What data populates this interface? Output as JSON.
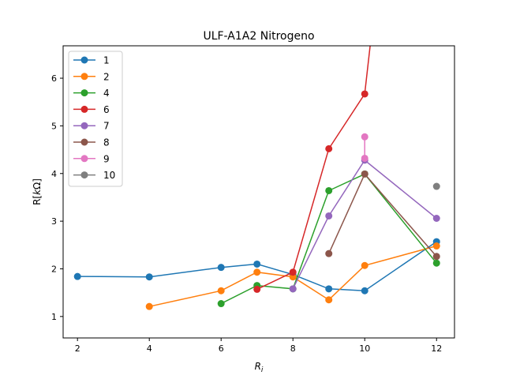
{
  "chart_data": {
    "type": "line",
    "title": "ULF-A1A2 Nitrogeno",
    "xlabel": "R",
    "xlabel_sub": "i",
    "ylabel_prefix": "R[",
    "ylabel_var": "k",
    "ylabel_suffix": "Ω]",
    "xlim": [
      1.6,
      12.5
    ],
    "ylim": [
      0.55,
      6.68
    ],
    "xticks": [
      2,
      4,
      6,
      8,
      10,
      12
    ],
    "yticks": [
      1,
      2,
      3,
      4,
      5,
      6
    ],
    "grid": false,
    "legend_position": "top-left",
    "series": [
      {
        "name": "1",
        "color": "#1f77b4",
        "x": [
          2,
          4,
          6,
          7,
          8,
          9,
          10,
          12
        ],
        "y": [
          1.84,
          1.83,
          2.03,
          2.1,
          1.88,
          1.58,
          1.54,
          2.57
        ]
      },
      {
        "name": "2",
        "color": "#ff7f0e",
        "x": [
          4,
          6,
          7,
          8,
          9,
          10,
          12
        ],
        "y": [
          1.21,
          1.54,
          1.93,
          1.83,
          1.35,
          2.07,
          2.48
        ]
      },
      {
        "name": "4",
        "color": "#2ca02c",
        "x": [
          6,
          7,
          8,
          9,
          10,
          12
        ],
        "y": [
          1.27,
          1.65,
          1.58,
          3.64,
          3.99,
          2.12
        ]
      },
      {
        "name": "6",
        "color": "#d62728",
        "x": [
          7,
          8,
          9,
          10,
          10.15
        ],
        "y": [
          1.57,
          1.93,
          4.52,
          5.67,
          6.68
        ],
        "marker_count": 4
      },
      {
        "name": "7",
        "color": "#9467bd",
        "x": [
          8,
          9,
          10,
          12
        ],
        "y": [
          1.58,
          3.11,
          4.28,
          3.06
        ]
      },
      {
        "name": "8",
        "color": "#8c564b",
        "x": [
          9,
          10,
          12
        ],
        "y": [
          2.32,
          3.99,
          2.26
        ]
      },
      {
        "name": "9",
        "color": "#e377c2",
        "x": [
          10,
          10
        ],
        "y": [
          4.77,
          4.32
        ]
      },
      {
        "name": "10",
        "color": "#7f7f7f",
        "x": [
          12
        ],
        "y": [
          3.73
        ]
      }
    ]
  }
}
